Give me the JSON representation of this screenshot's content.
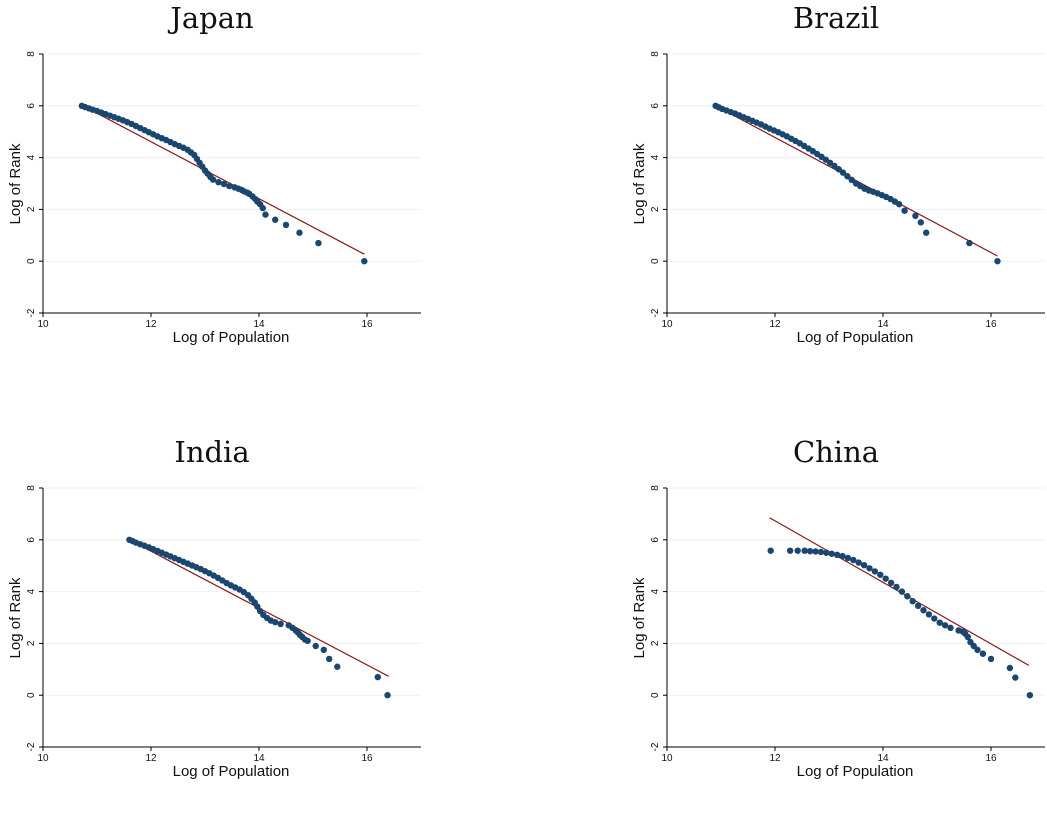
{
  "colors": {
    "points": "#1a476f",
    "fit_line": "#8b1a1a",
    "grid": "#eaf0f4",
    "axis": "#000000"
  },
  "chart_data": [
    {
      "type": "scatter",
      "title": "Japan",
      "xlabel": "Log of Population",
      "ylabel": "Log of Rank",
      "xlim": [
        10,
        17
      ],
      "ylim": [
        -2,
        8
      ],
      "xticks": [
        10,
        12,
        14,
        16
      ],
      "yticks": [
        -2,
        0,
        2,
        4,
        6,
        8
      ],
      "grid": true,
      "fit_line": {
        "x": [
          10.72,
          15.95
        ],
        "y": [
          6.02,
          0.27
        ]
      },
      "points": {
        "x": [
          10.72,
          10.78,
          10.85,
          10.92,
          11.0,
          11.08,
          11.16,
          11.24,
          11.32,
          11.4,
          11.48,
          11.56,
          11.64,
          11.72,
          11.8,
          11.88,
          11.96,
          12.04,
          12.12,
          12.2,
          12.28,
          12.36,
          12.44,
          12.52,
          12.6,
          12.68,
          12.74,
          12.8,
          12.85,
          12.9,
          12.95,
          13.0,
          13.05,
          13.1,
          13.15,
          13.25,
          13.35,
          13.45,
          13.55,
          13.62,
          13.68,
          13.72,
          13.78,
          13.82,
          13.88,
          13.93,
          13.97,
          14.02,
          14.07,
          14.12,
          14.3,
          14.5,
          14.75,
          15.1,
          15.95
        ],
        "y": [
          6.0,
          5.95,
          5.9,
          5.85,
          5.8,
          5.74,
          5.68,
          5.62,
          5.56,
          5.5,
          5.44,
          5.37,
          5.3,
          5.22,
          5.14,
          5.06,
          4.98,
          4.9,
          4.82,
          4.75,
          4.68,
          4.6,
          4.52,
          4.45,
          4.38,
          4.3,
          4.2,
          4.1,
          3.95,
          3.8,
          3.65,
          3.5,
          3.38,
          3.25,
          3.15,
          3.05,
          2.98,
          2.9,
          2.85,
          2.8,
          2.75,
          2.7,
          2.65,
          2.6,
          2.5,
          2.4,
          2.3,
          2.2,
          2.05,
          1.8,
          1.6,
          1.4,
          1.1,
          0.7,
          0.0
        ]
      }
    },
    {
      "type": "scatter",
      "title": "Brazil",
      "xlabel": "Log of Population",
      "ylabel": "Log of Rank",
      "xlim": [
        10,
        17
      ],
      "ylim": [
        -2,
        8
      ],
      "xticks": [
        10,
        12,
        14,
        16
      ],
      "yticks": [
        -2,
        0,
        2,
        4,
        6,
        8
      ],
      "grid": true,
      "fit_line": {
        "x": [
          10.9,
          16.12
        ],
        "y": [
          6.0,
          0.2
        ]
      },
      "points": {
        "x": [
          10.9,
          10.96,
          11.02,
          11.1,
          11.18,
          11.26,
          11.34,
          11.42,
          11.5,
          11.58,
          11.66,
          11.74,
          11.82,
          11.9,
          11.98,
          12.06,
          12.14,
          12.22,
          12.3,
          12.38,
          12.46,
          12.54,
          12.62,
          12.7,
          12.78,
          12.86,
          12.94,
          13.02,
          13.1,
          13.18,
          13.26,
          13.34,
          13.42,
          13.5,
          13.58,
          13.66,
          13.74,
          13.82,
          13.9,
          13.98,
          14.06,
          14.14,
          14.22,
          14.3,
          14.4,
          14.6,
          14.7,
          14.8,
          15.6,
          16.12
        ],
        "y": [
          6.0,
          5.94,
          5.88,
          5.82,
          5.76,
          5.7,
          5.63,
          5.56,
          5.49,
          5.42,
          5.35,
          5.28,
          5.2,
          5.12,
          5.05,
          4.98,
          4.9,
          4.82,
          4.73,
          4.64,
          4.55,
          4.45,
          4.35,
          4.25,
          4.14,
          4.03,
          3.92,
          3.8,
          3.68,
          3.55,
          3.42,
          3.28,
          3.14,
          3.0,
          2.9,
          2.8,
          2.73,
          2.68,
          2.62,
          2.55,
          2.48,
          2.4,
          2.3,
          2.2,
          1.95,
          1.75,
          1.5,
          1.1,
          0.7,
          0.0
        ]
      }
    },
    {
      "type": "scatter",
      "title": "India",
      "xlabel": "Log of Population",
      "ylabel": "Log of Rank",
      "xlim": [
        10,
        17
      ],
      "ylim": [
        -2,
        8
      ],
      "xticks": [
        10,
        12,
        14,
        16
      ],
      "yticks": [
        -2,
        0,
        2,
        4,
        6,
        8
      ],
      "grid": true,
      "fit_line": {
        "x": [
          11.6,
          16.4
        ],
        "y": [
          6.0,
          0.73
        ]
      },
      "points": {
        "x": [
          11.6,
          11.66,
          11.72,
          11.8,
          11.88,
          11.96,
          12.04,
          12.12,
          12.2,
          12.28,
          12.36,
          12.44,
          12.52,
          12.6,
          12.68,
          12.76,
          12.84,
          12.92,
          13.0,
          13.08,
          13.16,
          13.24,
          13.32,
          13.4,
          13.48,
          13.56,
          13.64,
          13.72,
          13.8,
          13.86,
          13.92,
          13.97,
          14.02,
          14.08,
          14.15,
          14.22,
          14.3,
          14.4,
          14.55,
          14.62,
          14.68,
          14.72,
          14.76,
          14.8,
          14.85,
          14.9,
          15.05,
          15.2,
          15.3,
          15.45,
          16.2,
          16.38
        ],
        "y": [
          6.0,
          5.95,
          5.89,
          5.83,
          5.77,
          5.71,
          5.64,
          5.57,
          5.5,
          5.43,
          5.36,
          5.29,
          5.22,
          5.15,
          5.08,
          5.01,
          4.94,
          4.87,
          4.79,
          4.71,
          4.62,
          4.53,
          4.43,
          4.33,
          4.24,
          4.16,
          4.08,
          3.98,
          3.86,
          3.72,
          3.58,
          3.42,
          3.25,
          3.1,
          2.98,
          2.88,
          2.82,
          2.75,
          2.7,
          2.6,
          2.5,
          2.42,
          2.33,
          2.25,
          2.15,
          2.1,
          1.9,
          1.75,
          1.4,
          1.1,
          0.7,
          0.0
        ]
      }
    },
    {
      "type": "scatter",
      "title": "China",
      "xlabel": "Log of Population",
      "ylabel": "Log of Rank",
      "xlim": [
        10,
        17
      ],
      "ylim": [
        -2,
        8
      ],
      "xticks": [
        10,
        12,
        14,
        16
      ],
      "yticks": [
        -2,
        0,
        2,
        4,
        6,
        8
      ],
      "grid": true,
      "fit_line": {
        "x": [
          11.9,
          16.7
        ],
        "y": [
          6.85,
          1.15
        ]
      },
      "points": {
        "x": [
          11.92,
          12.28,
          12.42,
          12.55,
          12.65,
          12.75,
          12.85,
          12.95,
          13.05,
          13.15,
          13.25,
          13.35,
          13.45,
          13.55,
          13.65,
          13.75,
          13.85,
          13.95,
          14.05,
          14.15,
          14.25,
          14.35,
          14.45,
          14.55,
          14.65,
          14.75,
          14.85,
          14.95,
          15.05,
          15.15,
          15.25,
          15.4,
          15.48,
          15.52,
          15.57,
          15.62,
          15.68,
          15.75,
          15.85,
          16.0,
          16.35,
          16.45,
          16.72
        ],
        "y": [
          5.58,
          5.58,
          5.58,
          5.58,
          5.56,
          5.55,
          5.53,
          5.5,
          5.46,
          5.42,
          5.37,
          5.3,
          5.22,
          5.12,
          5.02,
          4.9,
          4.78,
          4.65,
          4.5,
          4.34,
          4.18,
          4.0,
          3.82,
          3.63,
          3.45,
          3.28,
          3.12,
          2.96,
          2.8,
          2.7,
          2.6,
          2.5,
          2.45,
          2.38,
          2.25,
          2.05,
          1.9,
          1.75,
          1.6,
          1.4,
          1.05,
          0.68,
          0.0
        ]
      }
    }
  ]
}
